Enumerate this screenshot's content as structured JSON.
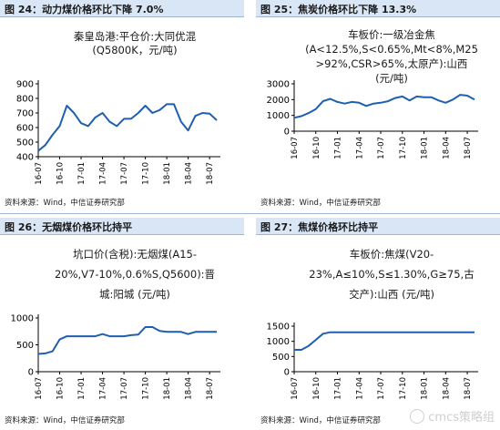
{
  "panels": [
    {
      "title": "图 24：动力煤价格环比下降 7.0%",
      "source": "资料来源：Wind，中信证券研究部",
      "chart_title_lines": [
        "秦皇岛港:平仓价:大同优混",
        "(Q5800K，元/吨)"
      ]
    },
    {
      "title": "图 25：焦炭价格环比下降 13.3%",
      "source": "资料来源：Wind，中信证券研究部",
      "chart_title_lines": [
        "车板价:一级冶金焦",
        "(A<12.5%,S<0.65%,Mt<8%,M25",
        ">92%,CSR>65%,太原产):山西",
        "(元/吨)"
      ]
    },
    {
      "title": "图 26：无烟煤价格环比持平",
      "source": "资料来源：Wind，中信证券研究部",
      "chart_title_lines": [
        "坑口价(含税):无烟煤(A15-",
        "20%,V7-10%,0.6%S,Q5600):晋",
        "城:阳城 (元/吨)"
      ]
    },
    {
      "title": "图 27：焦煤价格环比持平",
      "source": "资料来源：Wind，中信证券研究部",
      "chart_title_lines": [
        "车板价:焦煤(V20-",
        "23%,A≤10%,S≤1.30%,G≥75,古",
        "交产):山西 (元/吨)"
      ]
    }
  ],
  "watermark": {
    "text": "cmcs策略组"
  },
  "colors": {
    "line": "#1f5fae",
    "axis": "#000000",
    "header_bg": "#d9e6f5"
  },
  "chart_data": [
    {
      "type": "line",
      "ylim": [
        400,
        900
      ],
      "yticks": [
        400,
        500,
        600,
        700,
        800,
        900
      ],
      "xticks": [
        "16-07",
        "16-10",
        "17-01",
        "17-04",
        "17-07",
        "17-10",
        "18-01",
        "18-04",
        "18-07"
      ],
      "series": [
        {
          "values": [
            {
              "x": "16-07",
              "y": 440
            },
            {
              "x": "16-08",
              "y": 480
            },
            {
              "x": "16-09",
              "y": 550
            },
            {
              "x": "16-10",
              "y": 610
            },
            {
              "x": "16-11",
              "y": 750
            },
            {
              "x": "16-12",
              "y": 700
            },
            {
              "x": "17-01",
              "y": 630
            },
            {
              "x": "17-02",
              "y": 610
            },
            {
              "x": "17-03",
              "y": 670
            },
            {
              "x": "17-04",
              "y": 700
            },
            {
              "x": "17-05",
              "y": 640
            },
            {
              "x": "17-06",
              "y": 610
            },
            {
              "x": "17-07",
              "y": 660
            },
            {
              "x": "17-08",
              "y": 660
            },
            {
              "x": "17-09",
              "y": 700
            },
            {
              "x": "17-10",
              "y": 750
            },
            {
              "x": "17-11",
              "y": 700
            },
            {
              "x": "17-12",
              "y": 720
            },
            {
              "x": "18-01",
              "y": 760
            },
            {
              "x": "18-02",
              "y": 760
            },
            {
              "x": "18-03",
              "y": 640
            },
            {
              "x": "18-04",
              "y": 580
            },
            {
              "x": "18-05",
              "y": 680
            },
            {
              "x": "18-06",
              "y": 700
            },
            {
              "x": "18-07",
              "y": 695
            },
            {
              "x": "18-08",
              "y": 650
            }
          ]
        }
      ]
    },
    {
      "type": "line",
      "ylim": [
        0,
        3000
      ],
      "yticks": [
        0,
        1000,
        2000,
        3000
      ],
      "xticks": [
        "16-07",
        "16-10",
        "17-01",
        "17-04",
        "17-07",
        "17-10",
        "18-01",
        "18-04",
        "18-07"
      ],
      "series": [
        {
          "values": [
            {
              "x": "16-07",
              "y": 850
            },
            {
              "x": "16-08",
              "y": 950
            },
            {
              "x": "16-09",
              "y": 1150
            },
            {
              "x": "16-10",
              "y": 1400
            },
            {
              "x": "16-11",
              "y": 1900
            },
            {
              "x": "16-12",
              "y": 2050
            },
            {
              "x": "17-01",
              "y": 1850
            },
            {
              "x": "17-02",
              "y": 1750
            },
            {
              "x": "17-03",
              "y": 1850
            },
            {
              "x": "17-04",
              "y": 1800
            },
            {
              "x": "17-05",
              "y": 1600
            },
            {
              "x": "17-06",
              "y": 1750
            },
            {
              "x": "17-07",
              "y": 1800
            },
            {
              "x": "17-08",
              "y": 1900
            },
            {
              "x": "17-09",
              "y": 2100
            },
            {
              "x": "17-10",
              "y": 2200
            },
            {
              "x": "17-11",
              "y": 1950
            },
            {
              "x": "17-12",
              "y": 2200
            },
            {
              "x": "18-01",
              "y": 2150
            },
            {
              "x": "18-02",
              "y": 2150
            },
            {
              "x": "18-03",
              "y": 1950
            },
            {
              "x": "18-04",
              "y": 1800
            },
            {
              "x": "18-05",
              "y": 2000
            },
            {
              "x": "18-06",
              "y": 2300
            },
            {
              "x": "18-07",
              "y": 2250
            },
            {
              "x": "18-08",
              "y": 2000
            }
          ]
        }
      ]
    },
    {
      "type": "line",
      "ylim": [
        0,
        1000
      ],
      "yticks": [
        0,
        500,
        1000
      ],
      "xticks": [
        "16-07",
        "16-10",
        "17-01",
        "17-04",
        "17-07",
        "17-10",
        "18-01",
        "18-04",
        "18-07"
      ],
      "series": [
        {
          "values": [
            {
              "x": "16-07",
              "y": 330
            },
            {
              "x": "16-08",
              "y": 340
            },
            {
              "x": "16-09",
              "y": 380
            },
            {
              "x": "16-10",
              "y": 600
            },
            {
              "x": "16-11",
              "y": 660
            },
            {
              "x": "16-12",
              "y": 660
            },
            {
              "x": "17-01",
              "y": 660
            },
            {
              "x": "17-02",
              "y": 660
            },
            {
              "x": "17-03",
              "y": 660
            },
            {
              "x": "17-04",
              "y": 700
            },
            {
              "x": "17-05",
              "y": 660
            },
            {
              "x": "17-06",
              "y": 660
            },
            {
              "x": "17-07",
              "y": 660
            },
            {
              "x": "17-08",
              "y": 680
            },
            {
              "x": "17-09",
              "y": 690
            },
            {
              "x": "17-10",
              "y": 830
            },
            {
              "x": "17-11",
              "y": 830
            },
            {
              "x": "17-12",
              "y": 760
            },
            {
              "x": "18-01",
              "y": 740
            },
            {
              "x": "18-02",
              "y": 740
            },
            {
              "x": "18-03",
              "y": 740
            },
            {
              "x": "18-04",
              "y": 700
            },
            {
              "x": "18-05",
              "y": 740
            },
            {
              "x": "18-06",
              "y": 740
            },
            {
              "x": "18-07",
              "y": 740
            },
            {
              "x": "18-08",
              "y": 740
            }
          ]
        }
      ]
    },
    {
      "type": "line",
      "ylim": [
        0,
        1500
      ],
      "yticks": [
        0,
        500,
        1000,
        1500
      ],
      "xticks": [
        "16-07",
        "16-10",
        "17-01",
        "17-04",
        "17-07",
        "17-10",
        "18-01",
        "18-04",
        "18-07"
      ],
      "series": [
        {
          "values": [
            {
              "x": "16-07",
              "y": 720
            },
            {
              "x": "16-08",
              "y": 720
            },
            {
              "x": "16-09",
              "y": 850
            },
            {
              "x": "16-10",
              "y": 1050
            },
            {
              "x": "16-11",
              "y": 1250
            },
            {
              "x": "16-12",
              "y": 1300
            },
            {
              "x": "17-01",
              "y": 1300
            },
            {
              "x": "17-02",
              "y": 1300
            },
            {
              "x": "17-03",
              "y": 1300
            },
            {
              "x": "17-04",
              "y": 1300
            },
            {
              "x": "17-05",
              "y": 1300
            },
            {
              "x": "17-06",
              "y": 1300
            },
            {
              "x": "17-07",
              "y": 1300
            },
            {
              "x": "17-08",
              "y": 1300
            },
            {
              "x": "17-09",
              "y": 1300
            },
            {
              "x": "17-10",
              "y": 1300
            },
            {
              "x": "17-11",
              "y": 1300
            },
            {
              "x": "17-12",
              "y": 1300
            },
            {
              "x": "18-01",
              "y": 1300
            },
            {
              "x": "18-02",
              "y": 1300
            },
            {
              "x": "18-03",
              "y": 1300
            },
            {
              "x": "18-04",
              "y": 1300
            },
            {
              "x": "18-05",
              "y": 1300
            },
            {
              "x": "18-06",
              "y": 1300
            },
            {
              "x": "18-07",
              "y": 1300
            },
            {
              "x": "18-08",
              "y": 1300
            }
          ]
        }
      ]
    }
  ]
}
